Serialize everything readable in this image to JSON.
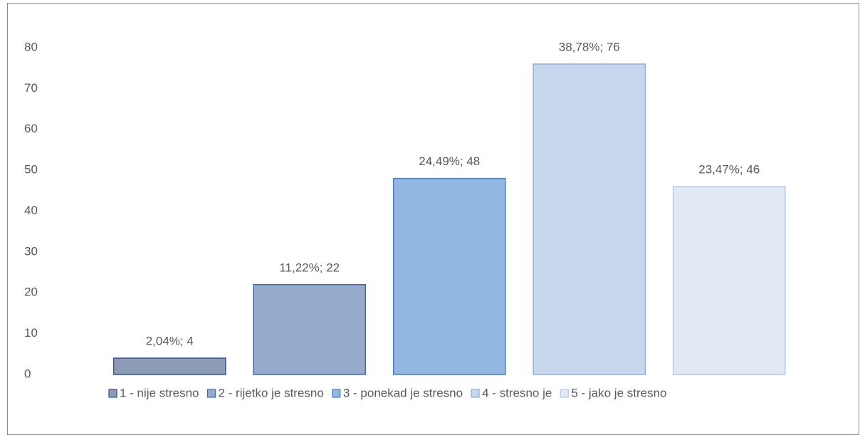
{
  "chart_data": {
    "type": "bar",
    "series": [
      {
        "name": "1 - nije stresno",
        "color": "#8e9bb6",
        "edgecolor": "#2f5597",
        "values": [
          4
        ],
        "value_labels": [
          "2,04%; 4"
        ]
      },
      {
        "name": "2 - rijetko je stresno",
        "color": "#97abcc",
        "edgecolor": "#3f6aa5",
        "values": [
          22
        ],
        "value_labels": [
          "11,22%; 22"
        ]
      },
      {
        "name": "3 - ponekad je stresno",
        "color": "#93b7e3",
        "edgecolor": "#4a7ebb",
        "values": [
          48
        ],
        "value_labels": [
          "24,49%; 48"
        ]
      },
      {
        "name": "4 - stresno je",
        "color": "#c6d7ee",
        "edgecolor": "#8fb0de",
        "values": [
          76
        ],
        "value_labels": [
          "38,78%; 76"
        ]
      },
      {
        "name": "5 - jako je stresno",
        "color": "#e1e9f5",
        "edgecolor": "#b6cbe9",
        "values": [
          46
        ],
        "value_labels": [
          "23,47%; 46"
        ]
      }
    ],
    "ylim": [
      0,
      80
    ],
    "yticks": [
      0,
      10,
      20,
      30,
      40,
      50,
      60,
      70,
      80
    ],
    "grid": false,
    "legend": "bottom"
  }
}
